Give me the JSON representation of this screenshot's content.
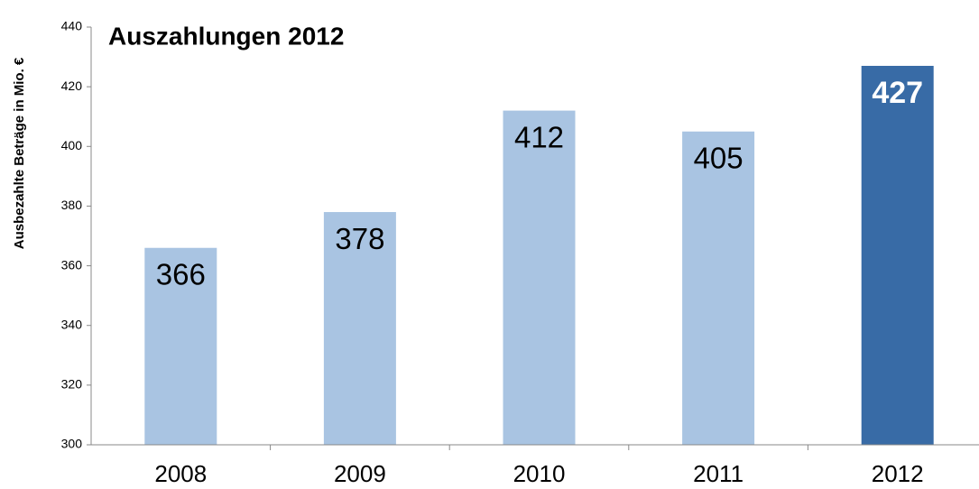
{
  "chart_data": {
    "type": "bar",
    "title": "Auszahlungen 2012",
    "y_label": "Ausbezahlte Beträge in Mio. €",
    "categories": [
      "2008",
      "2009",
      "2010",
      "2011",
      "2012"
    ],
    "values": [
      366,
      378,
      412,
      405,
      427
    ],
    "colors": [
      "#a9c4e2",
      "#a9c4e2",
      "#a9c4e2",
      "#a9c4e2",
      "#386ba6"
    ],
    "ylim": [
      300,
      440
    ],
    "yticks": [
      300,
      320,
      340,
      360,
      380,
      400,
      420,
      440
    ],
    "grid": false
  }
}
